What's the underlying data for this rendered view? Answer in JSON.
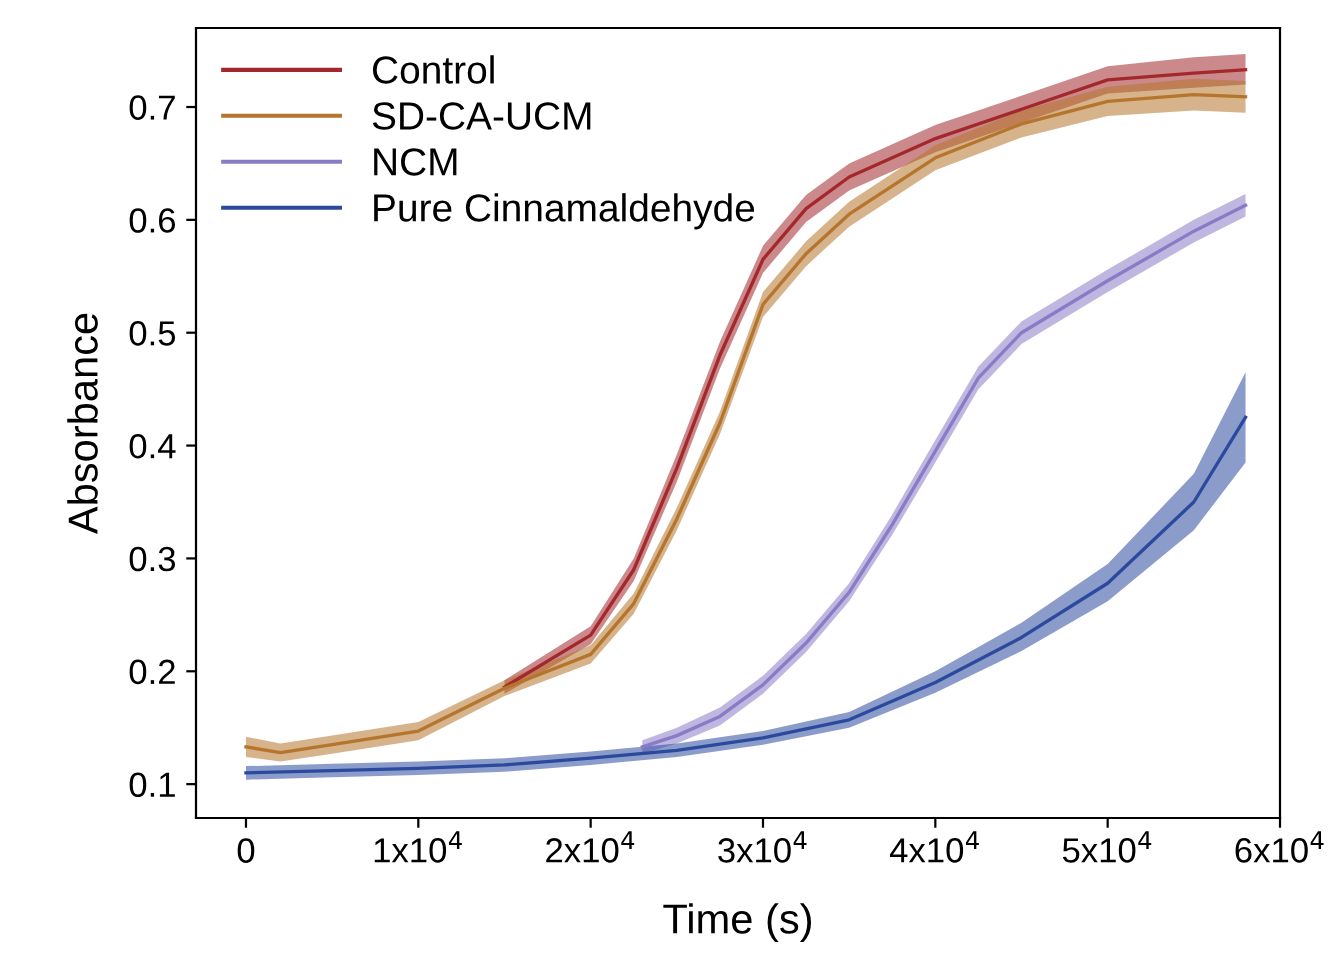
{
  "chart_data": {
    "type": "line",
    "xlabel": "Time (s)",
    "ylabel": "Absorbance",
    "xlim": [
      -2900,
      60000
    ],
    "ylim": [
      0.07,
      0.77
    ],
    "xticks": [
      0,
      {
        "value": 10000,
        "label": "1x10$^{4}$"
      },
      {
        "value": 20000,
        "label": "2x10$^{4}$"
      },
      {
        "value": 30000,
        "label": "3x10$^{4}$"
      },
      {
        "value": 40000,
        "label": "4x10$^{4}$"
      },
      {
        "value": 50000,
        "label": "5x10$^{4}$"
      },
      {
        "value": 60000,
        "label": "6x10$^{4}$"
      }
    ],
    "yticks": [
      0.1,
      0.2,
      0.3,
      0.4,
      0.5,
      0.6,
      0.7
    ],
    "grid": false,
    "legend": "top left",
    "marker": "none",
    "line_style": "solid",
    "series": [
      {
        "name": "Control",
        "color": "#a3282c",
        "x": [
          15000,
          20000,
          22500,
          25000,
          27500,
          30000,
          32500,
          35000,
          40000,
          45000,
          50000,
          55000,
          58000
        ],
        "values": [
          0.186,
          0.232,
          0.29,
          0.38,
          0.48,
          0.565,
          0.61,
          0.638,
          0.672,
          0.698,
          0.724,
          0.73,
          0.733
        ],
        "lower": [
          0.18,
          0.224,
          0.28,
          0.368,
          0.468,
          0.553,
          0.598,
          0.626,
          0.66,
          0.686,
          0.712,
          0.717,
          0.72
        ],
        "upper": [
          0.192,
          0.24,
          0.3,
          0.392,
          0.492,
          0.577,
          0.622,
          0.65,
          0.684,
          0.71,
          0.736,
          0.744,
          0.747
        ]
      },
      {
        "name": "SD-CA-UCM",
        "color": "#b5752c",
        "x": [
          0,
          2000,
          5000,
          10000,
          15000,
          20000,
          22500,
          25000,
          27500,
          30000,
          32500,
          35000,
          40000,
          45000,
          50000,
          55000,
          58000
        ],
        "values": [
          0.133,
          0.128,
          0.135,
          0.147,
          0.185,
          0.215,
          0.26,
          0.335,
          0.42,
          0.525,
          0.57,
          0.605,
          0.655,
          0.685,
          0.705,
          0.711,
          0.709
        ],
        "lower": [
          0.124,
          0.12,
          0.127,
          0.139,
          0.178,
          0.207,
          0.251,
          0.325,
          0.41,
          0.514,
          0.559,
          0.594,
          0.644,
          0.673,
          0.692,
          0.697,
          0.695
        ],
        "upper": [
          0.142,
          0.136,
          0.143,
          0.155,
          0.192,
          0.223,
          0.269,
          0.345,
          0.43,
          0.536,
          0.581,
          0.616,
          0.666,
          0.697,
          0.718,
          0.725,
          0.723
        ]
      },
      {
        "name": "NCM",
        "color": "#8a7bc6",
        "x": [
          23000,
          25000,
          27500,
          30000,
          32500,
          35000,
          37500,
          40000,
          42500,
          45000,
          50000,
          55000,
          58000
        ],
        "values": [
          0.133,
          0.143,
          0.16,
          0.188,
          0.225,
          0.27,
          0.33,
          0.395,
          0.46,
          0.5,
          0.546,
          0.59,
          0.613
        ],
        "lower": [
          0.127,
          0.136,
          0.152,
          0.18,
          0.217,
          0.262,
          0.321,
          0.385,
          0.45,
          0.49,
          0.536,
          0.58,
          0.603
        ],
        "upper": [
          0.139,
          0.15,
          0.168,
          0.196,
          0.233,
          0.278,
          0.339,
          0.405,
          0.47,
          0.51,
          0.556,
          0.6,
          0.623
        ]
      },
      {
        "name": "Pure Cinnamaldehyde",
        "color": "#2b4a9e",
        "x": [
          0,
          5000,
          10000,
          15000,
          20000,
          25000,
          30000,
          35000,
          40000,
          45000,
          50000,
          55000,
          58000
        ],
        "values": [
          0.11,
          0.112,
          0.114,
          0.117,
          0.123,
          0.13,
          0.141,
          0.157,
          0.19,
          0.23,
          0.278,
          0.35,
          0.425
        ],
        "lower": [
          0.104,
          0.106,
          0.108,
          0.111,
          0.117,
          0.124,
          0.135,
          0.15,
          0.181,
          0.218,
          0.262,
          0.325,
          0.385
        ],
        "upper": [
          0.116,
          0.118,
          0.12,
          0.123,
          0.129,
          0.136,
          0.147,
          0.164,
          0.2,
          0.243,
          0.295,
          0.375,
          0.465
        ]
      }
    ]
  }
}
